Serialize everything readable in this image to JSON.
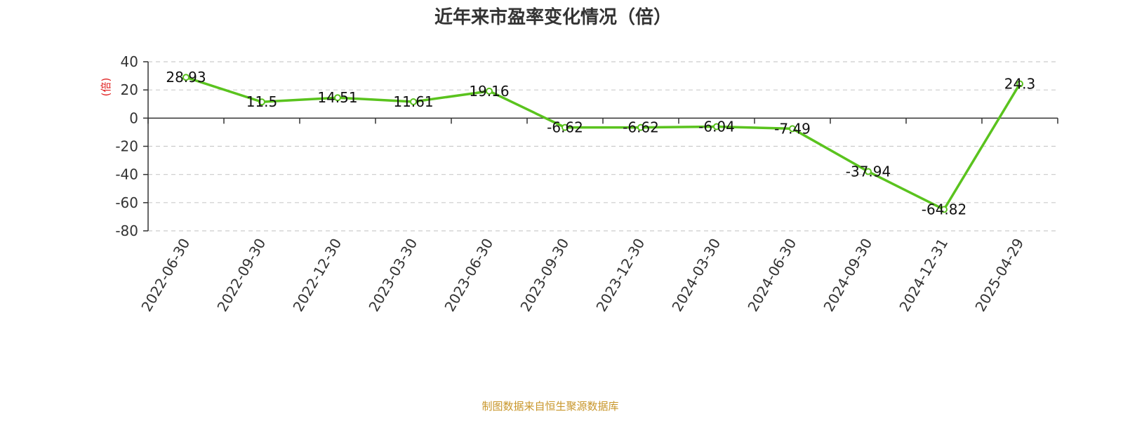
{
  "chart_data": {
    "type": "line",
    "title": "近年来市盈率变化情况（倍）",
    "ylabel": "(倍)",
    "xlabel": "",
    "categories": [
      "2022-06-30",
      "2022-09-30",
      "2022-12-30",
      "2023-03-30",
      "2023-06-30",
      "2023-09-30",
      "2023-12-30",
      "2024-03-30",
      "2024-06-30",
      "2024-09-30",
      "2024-12-31",
      "2025-04-29"
    ],
    "series": [
      {
        "values": [
          28.93,
          11.5,
          14.51,
          11.61,
          19.16,
          -6.62,
          -6.62,
          -6.04,
          -7.49,
          -37.94,
          -64.82,
          24.3
        ]
      }
    ],
    "data_labels": [
      "28.93",
      "11.5",
      "14.51",
      "11.61",
      "19.16",
      "-6.62",
      "-6.62",
      "-6.04",
      "-7.49",
      "-37.94",
      "-64.82",
      "24.3"
    ],
    "ylim": [
      -80,
      40
    ],
    "yticks": [
      "40",
      "20",
      "0",
      "-20",
      "-40",
      "-60",
      "-80"
    ],
    "ytick_values": [
      40,
      20,
      0,
      -20,
      -40,
      -60,
      -80
    ],
    "grid": true,
    "colors": {
      "line": "#5ac31e",
      "ylabel": "#e02020",
      "source": "#c8962a",
      "grid": "#cccccc",
      "axis": "#333333"
    }
  },
  "source_note": "制图数据来自恒生聚源数据库"
}
